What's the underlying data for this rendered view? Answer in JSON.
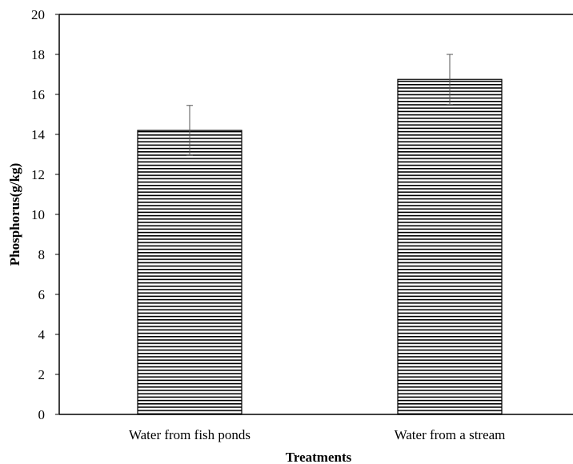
{
  "chart_data": {
    "type": "bar",
    "categories": [
      "Water from fish ponds",
      "Water from a stream"
    ],
    "values": [
      14.2,
      16.75
    ],
    "error": [
      1.25,
      1.25
    ],
    "xlabel": "Treatments",
    "ylabel": "Phosphorus(g/kg)",
    "ylim": [
      0,
      20
    ],
    "yticks": [
      "0",
      "2",
      "4",
      "6",
      "8",
      "10",
      "12",
      "14",
      "16",
      "18",
      "20"
    ],
    "grid": false,
    "bar_pattern": "horizontal-stripes",
    "colors": {
      "bar_stroke": "#000000",
      "stripe": "#000000",
      "bar_fill": "#ffffff",
      "axis": "#000000"
    }
  }
}
